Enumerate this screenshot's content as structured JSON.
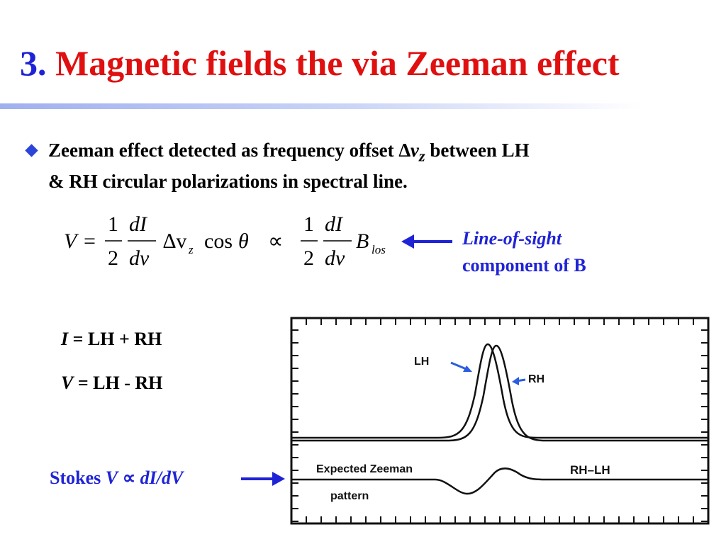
{
  "slide": {
    "title_number": "3.",
    "title_text": "Magnetic fields the via Zeeman effect",
    "bullet": {
      "text_a": "Zeeman effect detected as frequency offset ",
      "symbol": "∆v",
      "subscript": "z",
      "text_b": " between LH",
      "text_c": "& RH circular polarizations in spectral line."
    },
    "equation": {
      "lhs": "V",
      "equals": "=",
      "one": "1",
      "two": "2",
      "dI": "dI",
      "dv": "dv",
      "delta_v": "∆v",
      "sub_z": "z",
      "cos": "cos",
      "theta": "θ",
      "propto": "∝",
      "B": "B",
      "sub_los": "los"
    },
    "los_label": {
      "line1": "Line-of-sight",
      "line2": "component of B"
    },
    "definitions": {
      "I_sym": "I",
      "I_expr": " = LH + RH",
      "V_sym": "V",
      "V_expr": " = LH - RH"
    },
    "stokes_label": {
      "prefix": "Stokes ",
      "V": "V",
      "propto": " ∝ ",
      "expr": "dI/dV"
    },
    "figure": {
      "label_lh": "LH",
      "label_rh": "RH",
      "label_rh_lh": "RH–LH",
      "expected_line1": "Expected Zeeman",
      "expected_line2": "pattern"
    },
    "colors": {
      "title_number": "#1f23d6",
      "title_text": "#e01010",
      "blue_text": "#1f23d6",
      "plot_arrow": "#2a5de0"
    }
  }
}
